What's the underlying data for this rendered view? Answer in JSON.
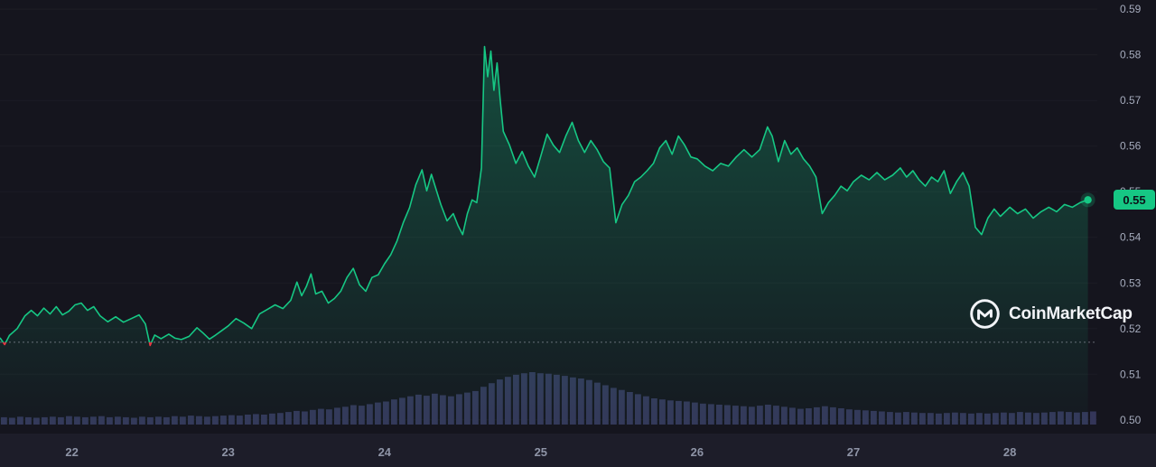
{
  "watermark": {
    "text": "CoinMarketCap"
  },
  "price_badge": {
    "value": "0.55",
    "background": "#16c784",
    "text_color": "#0d1118"
  },
  "chart_data": {
    "type": "line",
    "description": "7-day cryptocurrency price chart with volume bars",
    "legend": "none",
    "grid": "off",
    "x_label_unit": "day of month",
    "x_ticks": [
      "22",
      "23",
      "24",
      "25",
      "26",
      "27",
      "28"
    ],
    "x_tick_values": [
      22,
      23,
      24,
      25,
      26,
      27,
      28
    ],
    "y_ticks": [
      "0.59",
      "0.58",
      "0.57",
      "0.56",
      "0.55",
      "0.54",
      "0.53",
      "0.52",
      "0.51",
      "0.50"
    ],
    "y_tick_values": [
      0.59,
      0.58,
      0.57,
      0.56,
      0.55,
      0.54,
      0.53,
      0.52,
      0.51,
      0.5
    ],
    "y_axis_position": "right",
    "x_domain": [
      21.54,
      28.56
    ],
    "y_domain": [
      0.497,
      0.592
    ],
    "open_price": 0.517,
    "last_price": 0.548,
    "line_color": "#16c784",
    "below_open_color": "#ea3943",
    "series": [
      {
        "name": "price",
        "points": [
          [
            21.54,
            0.518
          ],
          [
            21.57,
            0.5165
          ],
          [
            21.6,
            0.5185
          ],
          [
            21.65,
            0.52
          ],
          [
            21.7,
            0.5228
          ],
          [
            21.74,
            0.524
          ],
          [
            21.78,
            0.5228
          ],
          [
            21.82,
            0.5245
          ],
          [
            21.86,
            0.5232
          ],
          [
            21.9,
            0.5248
          ],
          [
            21.94,
            0.523
          ],
          [
            21.98,
            0.5238
          ],
          [
            22.02,
            0.5252
          ],
          [
            22.06,
            0.5256
          ],
          [
            22.1,
            0.524
          ],
          [
            22.14,
            0.5248
          ],
          [
            22.18,
            0.5228
          ],
          [
            22.23,
            0.5215
          ],
          [
            22.28,
            0.5226
          ],
          [
            22.33,
            0.5214
          ],
          [
            22.38,
            0.5222
          ],
          [
            22.43,
            0.523
          ],
          [
            22.47,
            0.521
          ],
          [
            22.5,
            0.5163
          ],
          [
            22.53,
            0.5186
          ],
          [
            22.57,
            0.5178
          ],
          [
            22.62,
            0.5188
          ],
          [
            22.66,
            0.5179
          ],
          [
            22.7,
            0.5176
          ],
          [
            22.75,
            0.5183
          ],
          [
            22.8,
            0.5202
          ],
          [
            22.84,
            0.519
          ],
          [
            22.88,
            0.5177
          ],
          [
            22.92,
            0.5186
          ],
          [
            22.96,
            0.5196
          ],
          [
            23.0,
            0.5206
          ],
          [
            23.05,
            0.5222
          ],
          [
            23.1,
            0.5212
          ],
          [
            23.15,
            0.52
          ],
          [
            23.2,
            0.5232
          ],
          [
            23.25,
            0.5242
          ],
          [
            23.3,
            0.5252
          ],
          [
            23.35,
            0.5244
          ],
          [
            23.4,
            0.5262
          ],
          [
            23.44,
            0.5302
          ],
          [
            23.47,
            0.5272
          ],
          [
            23.5,
            0.5292
          ],
          [
            23.53,
            0.532
          ],
          [
            23.56,
            0.5276
          ],
          [
            23.6,
            0.5282
          ],
          [
            23.64,
            0.5256
          ],
          [
            23.68,
            0.5266
          ],
          [
            23.72,
            0.5282
          ],
          [
            23.76,
            0.5312
          ],
          [
            23.8,
            0.5332
          ],
          [
            23.84,
            0.5296
          ],
          [
            23.88,
            0.5282
          ],
          [
            23.92,
            0.5312
          ],
          [
            23.96,
            0.5318
          ],
          [
            24.0,
            0.5342
          ],
          [
            24.04,
            0.5362
          ],
          [
            24.08,
            0.5392
          ],
          [
            24.12,
            0.5432
          ],
          [
            24.16,
            0.5465
          ],
          [
            24.2,
            0.5515
          ],
          [
            24.24,
            0.5548
          ],
          [
            24.27,
            0.5502
          ],
          [
            24.3,
            0.5538
          ],
          [
            24.33,
            0.5505
          ],
          [
            24.36,
            0.5472
          ],
          [
            24.4,
            0.5436
          ],
          [
            24.44,
            0.5452
          ],
          [
            24.47,
            0.5426
          ],
          [
            24.5,
            0.5406
          ],
          [
            24.53,
            0.5452
          ],
          [
            24.56,
            0.5482
          ],
          [
            24.59,
            0.5476
          ],
          [
            24.62,
            0.5552
          ],
          [
            24.64,
            0.5818
          ],
          [
            24.66,
            0.5752
          ],
          [
            24.68,
            0.5808
          ],
          [
            24.7,
            0.5722
          ],
          [
            24.72,
            0.5782
          ],
          [
            24.74,
            0.5702
          ],
          [
            24.76,
            0.5632
          ],
          [
            24.8,
            0.5602
          ],
          [
            24.84,
            0.5562
          ],
          [
            24.88,
            0.5588
          ],
          [
            24.92,
            0.5556
          ],
          [
            24.96,
            0.5532
          ],
          [
            25.0,
            0.5578
          ],
          [
            25.04,
            0.5626
          ],
          [
            25.08,
            0.5602
          ],
          [
            25.12,
            0.5586
          ],
          [
            25.16,
            0.5622
          ],
          [
            25.2,
            0.5652
          ],
          [
            25.24,
            0.5612
          ],
          [
            25.28,
            0.5586
          ],
          [
            25.32,
            0.5612
          ],
          [
            25.36,
            0.5592
          ],
          [
            25.4,
            0.5566
          ],
          [
            25.44,
            0.5552
          ],
          [
            25.48,
            0.5432
          ],
          [
            25.52,
            0.5472
          ],
          [
            25.56,
            0.5492
          ],
          [
            25.6,
            0.5522
          ],
          [
            25.64,
            0.5532
          ],
          [
            25.68,
            0.5546
          ],
          [
            25.72,
            0.5562
          ],
          [
            25.76,
            0.5596
          ],
          [
            25.8,
            0.5612
          ],
          [
            25.84,
            0.5582
          ],
          [
            25.88,
            0.5622
          ],
          [
            25.92,
            0.5602
          ],
          [
            25.96,
            0.5576
          ],
          [
            26.0,
            0.5572
          ],
          [
            26.05,
            0.5556
          ],
          [
            26.1,
            0.5546
          ],
          [
            26.15,
            0.5562
          ],
          [
            26.2,
            0.5556
          ],
          [
            26.25,
            0.5576
          ],
          [
            26.3,
            0.5592
          ],
          [
            26.35,
            0.5576
          ],
          [
            26.4,
            0.5592
          ],
          [
            26.45,
            0.5642
          ],
          [
            26.48,
            0.5622
          ],
          [
            26.52,
            0.5566
          ],
          [
            26.56,
            0.5612
          ],
          [
            26.6,
            0.5582
          ],
          [
            26.64,
            0.5596
          ],
          [
            26.68,
            0.5572
          ],
          [
            26.72,
            0.5556
          ],
          [
            26.76,
            0.5532
          ],
          [
            26.8,
            0.5452
          ],
          [
            26.84,
            0.5476
          ],
          [
            26.88,
            0.5492
          ],
          [
            26.92,
            0.5512
          ],
          [
            26.96,
            0.5502
          ],
          [
            27.0,
            0.5522
          ],
          [
            27.05,
            0.5536
          ],
          [
            27.1,
            0.5526
          ],
          [
            27.15,
            0.5542
          ],
          [
            27.2,
            0.5526
          ],
          [
            27.25,
            0.5536
          ],
          [
            27.3,
            0.5552
          ],
          [
            27.34,
            0.5532
          ],
          [
            27.38,
            0.5546
          ],
          [
            27.42,
            0.5526
          ],
          [
            27.46,
            0.5512
          ],
          [
            27.5,
            0.5532
          ],
          [
            27.54,
            0.5522
          ],
          [
            27.58,
            0.5546
          ],
          [
            27.62,
            0.5496
          ],
          [
            27.66,
            0.5522
          ],
          [
            27.7,
            0.5542
          ],
          [
            27.74,
            0.5512
          ],
          [
            27.78,
            0.5422
          ],
          [
            27.82,
            0.5406
          ],
          [
            27.86,
            0.5442
          ],
          [
            27.9,
            0.5462
          ],
          [
            27.94,
            0.5446
          ],
          [
            28.0,
            0.5466
          ],
          [
            28.05,
            0.5452
          ],
          [
            28.1,
            0.5462
          ],
          [
            28.15,
            0.5442
          ],
          [
            28.2,
            0.5456
          ],
          [
            28.25,
            0.5466
          ],
          [
            28.3,
            0.5456
          ],
          [
            28.35,
            0.5472
          ],
          [
            28.4,
            0.5466
          ],
          [
            28.45,
            0.5476
          ],
          [
            28.5,
            0.5482
          ]
        ]
      }
    ],
    "volume": {
      "color": "#343659",
      "scale": "relative 0-100",
      "values": [
        14,
        13,
        15,
        14,
        13,
        14,
        15,
        14,
        16,
        15,
        14,
        15,
        16,
        14,
        15,
        14,
        13,
        15,
        14,
        15,
        14,
        16,
        15,
        17,
        16,
        15,
        16,
        17,
        18,
        17,
        19,
        20,
        19,
        21,
        22,
        24,
        26,
        25,
        28,
        30,
        29,
        32,
        34,
        37,
        36,
        39,
        42,
        44,
        48,
        51,
        54,
        57,
        55,
        59,
        56,
        54,
        58,
        61,
        64,
        72,
        79,
        86,
        91,
        95,
        98,
        100,
        98,
        97,
        95,
        93,
        90,
        88,
        85,
        80,
        75,
        70,
        66,
        62,
        58,
        54,
        50,
        48,
        46,
        45,
        44,
        42,
        40,
        39,
        38,
        37,
        36,
        35,
        34,
        36,
        38,
        36,
        34,
        32,
        30,
        31,
        33,
        35,
        33,
        31,
        29,
        28,
        27,
        26,
        25,
        24,
        23,
        24,
        23,
        22,
        22,
        21,
        22,
        23,
        22,
        21,
        22,
        21,
        22,
        23,
        22,
        24,
        23,
        22,
        23,
        24,
        25,
        24,
        23,
        24,
        25
      ]
    }
  }
}
